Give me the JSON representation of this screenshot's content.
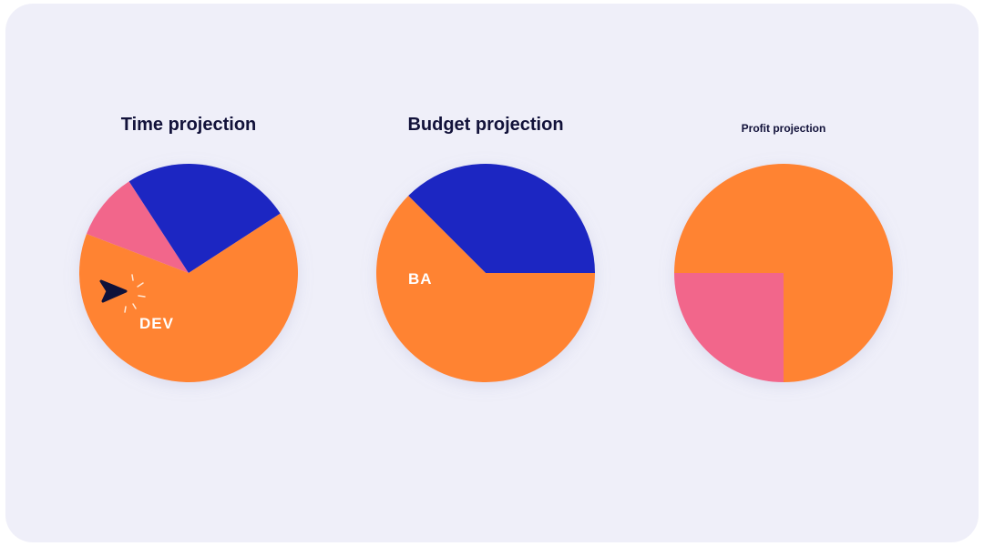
{
  "chart_data": [
    {
      "type": "pie",
      "title": "Time projection",
      "slices": [
        {
          "name": "pink",
          "value": 10,
          "color": "#f2668b",
          "label": ""
        },
        {
          "name": "blue",
          "value": 25,
          "color": "#1c26c2",
          "label": ""
        },
        {
          "name": "orange",
          "value": 65,
          "color": "#ff8330",
          "label": "DEV"
        }
      ],
      "start_angle": 291
    },
    {
      "type": "pie",
      "title": "Budget projection",
      "slices": [
        {
          "name": "blue",
          "value": 37.5,
          "color": "#1c26c2",
          "label": ""
        },
        {
          "name": "orange",
          "value": 62.5,
          "color": "#ff8330",
          "label": "BA"
        }
      ],
      "start_angle": 315
    },
    {
      "type": "pie",
      "title": "Profit projection",
      "slices": [
        {
          "name": "orange",
          "value": 75,
          "color": "#ff8330",
          "label": ""
        },
        {
          "name": "pink",
          "value": 25,
          "color": "#f2668b",
          "label": ""
        }
      ],
      "start_angle": 270
    }
  ],
  "cursor_icon": "pointer-click-icon"
}
